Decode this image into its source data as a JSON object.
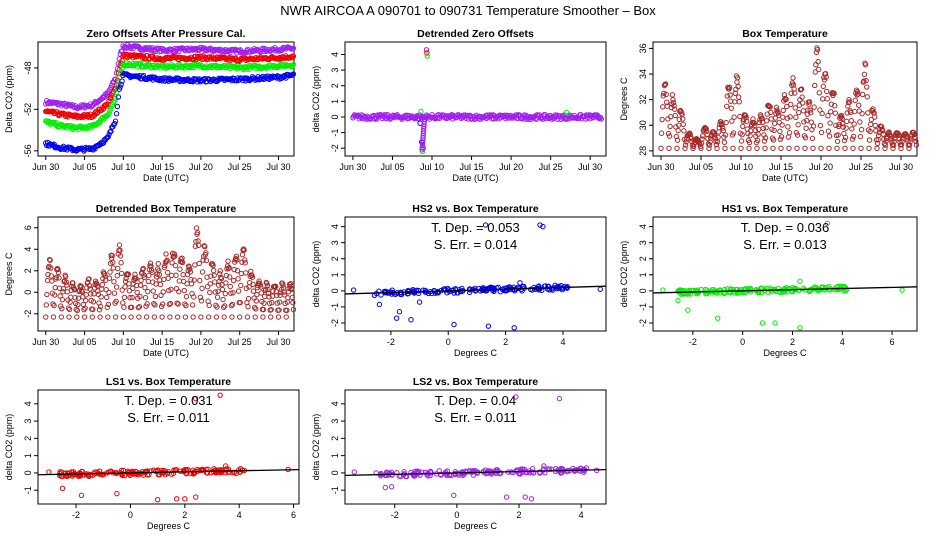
{
  "figure": {
    "title": "NWR   AIRCOA A   090701 to 090731   Temperature Smoother – Box"
  },
  "colors": {
    "blue": "#0000ee",
    "red": "#ee0000",
    "green": "#00ee00",
    "purple": "#a020f0",
    "dark_red": "#a52a2a",
    "black": "#000000"
  },
  "chart_data": [
    {
      "id": "zero_offsets",
      "type": "scatter",
      "title": "Zero Offsets After Pressure Cal.",
      "xlabel": "Date (UTC)",
      "ylabel": "Delta CO2 (ppm)",
      "xlim": [
        -1,
        32
      ],
      "ylim": [
        -56.5,
        -45.5
      ],
      "xticks": [
        0,
        5,
        10,
        15,
        20,
        25,
        30
      ],
      "xtick_labels": [
        "Jun 30",
        "Jul 05",
        "Jul 10",
        "Jul 15",
        "Jul 20",
        "Jul 25",
        "Jul 30"
      ],
      "yticks": [
        -56,
        -52,
        -48
      ],
      "ytick_labels": [
        "-56",
        "-52",
        "-48"
      ],
      "series": [
        {
          "name": "purple",
          "color": "#a020f0",
          "x": [
            0,
            2,
            4,
            6,
            8,
            9,
            9.5,
            10,
            15,
            20,
            25,
            30,
            32
          ],
          "y": [
            -51.3,
            -51.5,
            -51.8,
            -51.6,
            -50.5,
            -49,
            -47,
            -45.9,
            -46.3,
            -46.2,
            -46.4,
            -46.2,
            -46.1
          ]
        },
        {
          "name": "red",
          "color": "#ee0000",
          "x": [
            0,
            2,
            4,
            6,
            8,
            9,
            9.5,
            10,
            15,
            20,
            25,
            30,
            32
          ],
          "y": [
            -52.2,
            -52.5,
            -52.7,
            -52.6,
            -51.5,
            -50,
            -48,
            -46.8,
            -47.1,
            -47.0,
            -47.2,
            -47.0,
            -46.9
          ]
        },
        {
          "name": "green",
          "color": "#00ee00",
          "x": [
            0,
            2,
            4,
            6,
            8,
            9,
            9.5,
            10,
            15,
            20,
            25,
            30,
            32
          ],
          "y": [
            -53.2,
            -53.6,
            -53.8,
            -53.7,
            -52.5,
            -51,
            -49,
            -47.6,
            -47.9,
            -47.8,
            -48.0,
            -47.8,
            -47.7
          ]
        },
        {
          "name": "blue",
          "color": "#0000ee",
          "x": [
            0,
            2,
            4,
            6,
            8,
            9,
            9.5,
            10,
            15,
            20,
            25,
            30,
            32
          ],
          "y": [
            -55.3,
            -55.7,
            -55.9,
            -55.8,
            -54.8,
            -53,
            -50,
            -48.7,
            -49.1,
            -49.2,
            -49.1,
            -48.9,
            -48.7
          ]
        }
      ]
    },
    {
      "id": "detrended_zero_offsets",
      "type": "scatter",
      "title": "Detrended Zero Offsets",
      "xlabel": "Date (UTC)",
      "ylabel": "delta CO2 (ppm)",
      "xlim": [
        -1,
        32
      ],
      "ylim": [
        -2.5,
        4.8
      ],
      "xticks": [
        0,
        5,
        10,
        15,
        20,
        25,
        30
      ],
      "xtick_labels": [
        "Jun 30",
        "Jul 05",
        "Jul 10",
        "Jul 15",
        "Jul 20",
        "Jul 25",
        "Jul 30"
      ],
      "yticks": [
        -2,
        -1,
        0,
        1,
        2,
        3,
        4
      ],
      "ytick_labels": [
        "-2",
        "-1",
        "0",
        "1",
        "2",
        "3",
        "4"
      ],
      "band": {
        "x_start": 0,
        "x_end": 31.5,
        "y_center": 0,
        "half_width": 0.15,
        "color": "#a020f0"
      },
      "outliers": [
        {
          "x": 9.3,
          "y": 4.3,
          "color": "#a020f0"
        },
        {
          "x": 9.35,
          "y": 4.1,
          "color": "#ee0000"
        },
        {
          "x": 9.4,
          "y": 3.9,
          "color": "#00ee00"
        },
        {
          "x": 8.8,
          "y": -2.2,
          "color": "#00ee00"
        },
        {
          "x": 8.9,
          "y": -2.0,
          "color": "#a020f0"
        },
        {
          "x": 8.7,
          "y": -1.6,
          "color": "#0000ee"
        },
        {
          "x": 8.6,
          "y": 0.35,
          "color": "#00ee00"
        },
        {
          "x": 27,
          "y": 0.3,
          "color": "#00ee00"
        },
        {
          "x": 8.5,
          "y": -0.4,
          "color": "#0000ee"
        }
      ]
    },
    {
      "id": "box_temperature",
      "type": "line",
      "title": "Box Temperature",
      "xlabel": "Date (UTC)",
      "ylabel": "Degrees C",
      "xlim": [
        -1,
        32
      ],
      "ylim": [
        27.6,
        36.5
      ],
      "xticks": [
        0,
        5,
        10,
        15,
        20,
        25,
        30
      ],
      "xtick_labels": [
        "Jun 30",
        "Jul 05",
        "Jul 10",
        "Jul 15",
        "Jul 20",
        "Jul 25",
        "Jul 30"
      ],
      "yticks": [
        28,
        30,
        32,
        34,
        36
      ],
      "ytick_labels": [
        "28",
        "30",
        "32",
        "34",
        "36"
      ],
      "baseline": 28.2,
      "daily_peaks": [
        33.5,
        32.5,
        31.5,
        29.5,
        29,
        30,
        29.5,
        30.5,
        33.5,
        34.2,
        31,
        30.5,
        31,
        32,
        31.5,
        32.5,
        34,
        33,
        32,
        36.2,
        34.5,
        33,
        31,
        32,
        33,
        35,
        31.5,
        30,
        29.5,
        29.5,
        29.5,
        29.5
      ]
    },
    {
      "id": "detrended_box_temperature",
      "type": "line",
      "title": "Detrended Box Temperature",
      "xlabel": "Date (UTC)",
      "ylabel": "Degrees C",
      "xlim": [
        -1,
        32
      ],
      "ylim": [
        -3.6,
        7
      ],
      "xticks": [
        0,
        5,
        10,
        15,
        20,
        25,
        30
      ],
      "xtick_labels": [
        "Jun 30",
        "Jul 05",
        "Jul 10",
        "Jul 15",
        "Jul 20",
        "Jul 25",
        "Jul 30"
      ],
      "yticks": [
        -2,
        0,
        2,
        4,
        6
      ],
      "ytick_labels": [
        "-2",
        "0",
        "2",
        "4",
        "6"
      ],
      "baseline": -2.3,
      "daily_peaks": [
        3.2,
        2.5,
        1.6,
        1,
        0.8,
        1.5,
        1.2,
        2.2,
        3.6,
        4.4,
        2.3,
        2,
        2.5,
        3.3,
        2.8,
        3.7,
        4.3,
        3.5,
        2.8,
        6.6,
        4.5,
        3.3,
        2,
        3,
        3.8,
        4.6,
        2.2,
        1.3,
        1,
        1,
        1,
        1
      ]
    },
    {
      "id": "hs2_vs_box",
      "type": "scatter",
      "title": "HS2 vs. Box Temperature",
      "xlabel": "Degrees C",
      "ylabel": "delta CO2 (ppm)",
      "xlim": [
        -3.6,
        5.5
      ],
      "ylim": [
        -2.5,
        4.6
      ],
      "xticks": [
        -2,
        0,
        2,
        4
      ],
      "xtick_labels": [
        "-2",
        "0",
        "2",
        "4"
      ],
      "yticks": [
        -2,
        -1,
        0,
        1,
        2,
        3,
        4
      ],
      "ytick_labels": [
        "-2",
        "-1",
        "0",
        "1",
        "2",
        "3",
        "4"
      ],
      "color": "#0000ee",
      "slope": 0.053,
      "intercept": 0,
      "annotation": [
        "T. Dep. = 0.053",
        "S. Err. = 0.014"
      ],
      "cloud": {
        "x_min": -2.6,
        "x_max": 4.2,
        "y_half": 0.15
      },
      "outliers": [
        [
          -1.8,
          -1.7
        ],
        [
          -1.3,
          -1.8
        ],
        [
          -1.7,
          -1.3
        ],
        [
          -2.4,
          -0.85
        ],
        [
          -1.0,
          -0.7
        ],
        [
          0.2,
          -2.1
        ],
        [
          1.4,
          -2.2
        ],
        [
          2.3,
          -2.3
        ],
        [
          1.3,
          4.1
        ],
        [
          3.2,
          4.1
        ],
        [
          3.3,
          4.0
        ],
        [
          5.3,
          0.1
        ],
        [
          -3.3,
          0.05
        ],
        [
          2.5,
          0.5
        ]
      ]
    },
    {
      "id": "hs1_vs_box",
      "type": "scatter",
      "title": "HS1 vs. Box Temperature",
      "xlabel": "Degrees C",
      "ylabel": "delta CO2 (ppm)",
      "xlim": [
        -3.6,
        7
      ],
      "ylim": [
        -2.5,
        4.6
      ],
      "xticks": [
        -2,
        0,
        2,
        4,
        6
      ],
      "xtick_labels": [
        "-2",
        "0",
        "2",
        "4",
        "6"
      ],
      "yticks": [
        -2,
        -1,
        0,
        1,
        2,
        3,
        4
      ],
      "ytick_labels": [
        "-2",
        "-1",
        "0",
        "1",
        "2",
        "3",
        "4"
      ],
      "color": "#00ee00",
      "slope": 0.036,
      "intercept": 0,
      "annotation": [
        "T. Dep. = 0.036",
        "S. Err. = 0.013"
      ],
      "cloud": {
        "x_min": -2.6,
        "x_max": 4.2,
        "y_half": 0.15
      },
      "outliers": [
        [
          -1.0,
          -1.7
        ],
        [
          -2.2,
          -1.2
        ],
        [
          -2.6,
          -0.6
        ],
        [
          0.8,
          -2.0
        ],
        [
          1.3,
          -2.0
        ],
        [
          2.3,
          -2.3
        ],
        [
          3.4,
          4.2
        ],
        [
          6.4,
          0.05
        ],
        [
          -3.2,
          0.05
        ],
        [
          2.3,
          0.6
        ]
      ]
    },
    {
      "id": "ls1_vs_box",
      "type": "scatter",
      "title": "LS1 vs. Box Temperature",
      "xlabel": "Degrees C",
      "ylabel": "delta CO2 (ppm)",
      "xlim": [
        -3.4,
        6.2
      ],
      "ylim": [
        -1.8,
        4.8
      ],
      "xticks": [
        -2,
        0,
        2,
        4,
        6
      ],
      "xtick_labels": [
        "-2",
        "0",
        "2",
        "4",
        "6"
      ],
      "yticks": [
        -1,
        0,
        1,
        2,
        3,
        4
      ],
      "ytick_labels": [
        "-1",
        "0",
        "1",
        "2",
        "3",
        "4"
      ],
      "color": "#ee0000",
      "slope": 0.031,
      "intercept": 0,
      "annotation": [
        "T. Dep. = 0.031",
        "S. Err. = 0.011"
      ],
      "cloud": {
        "x_min": -2.6,
        "x_max": 4.2,
        "y_half": 0.15
      },
      "outliers": [
        [
          -2.5,
          -0.9
        ],
        [
          -0.5,
          -1.2
        ],
        [
          -1.8,
          -1.3
        ],
        [
          1.7,
          -1.5
        ],
        [
          2.0,
          -1.5
        ],
        [
          2.4,
          -1.4
        ],
        [
          1.0,
          -1.55
        ],
        [
          3.3,
          4.5
        ],
        [
          2.4,
          4.3
        ],
        [
          5.8,
          0.2
        ],
        [
          -3.0,
          0.05
        ],
        [
          3.5,
          0.4
        ]
      ]
    },
    {
      "id": "ls2_vs_box",
      "type": "scatter",
      "title": "LS2 vs. Box Temperature",
      "xlabel": "Degrees C",
      "ylabel": "delta CO2 (ppm)",
      "xlim": [
        -3.6,
        4.8
      ],
      "ylim": [
        -1.8,
        4.8
      ],
      "xticks": [
        -2,
        0,
        2,
        4
      ],
      "xtick_labels": [
        "-2",
        "0",
        "2",
        "4"
      ],
      "yticks": [
        -1,
        0,
        1,
        2,
        3,
        4
      ],
      "ytick_labels": [
        "-1",
        "0",
        "1",
        "2",
        "3",
        "4"
      ],
      "color": "#a020f0",
      "slope": 0.04,
      "intercept": 0,
      "annotation": [
        "T. Dep. = 0.04",
        "S. Err. = 0.011"
      ],
      "cloud": {
        "x_min": -2.6,
        "x_max": 4.2,
        "y_half": 0.15
      },
      "outliers": [
        [
          -2.3,
          -0.85
        ],
        [
          -2.1,
          -0.8
        ],
        [
          -0.1,
          -1.3
        ],
        [
          1.6,
          -1.4
        ],
        [
          2.2,
          -1.4
        ],
        [
          2.4,
          -1.5
        ],
        [
          3.3,
          4.3
        ],
        [
          1.9,
          4.4
        ],
        [
          -3.3,
          0.05
        ],
        [
          4.5,
          0.15
        ],
        [
          2.8,
          0.4
        ]
      ]
    }
  ]
}
